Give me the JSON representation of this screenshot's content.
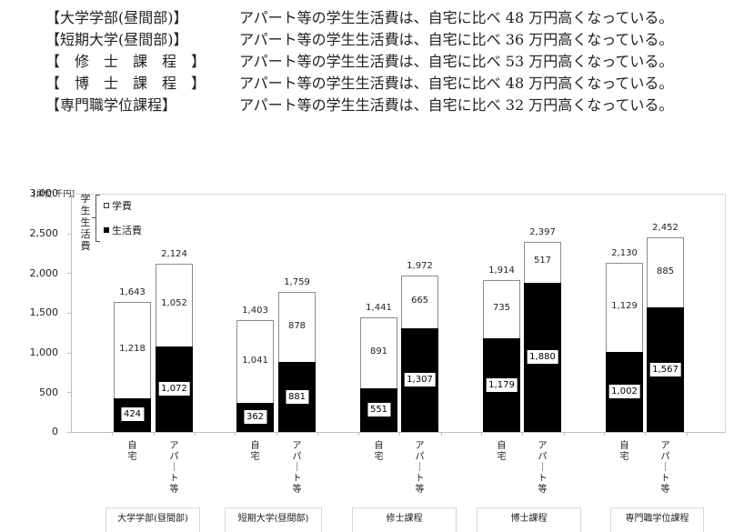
{
  "summary": [
    {
      "label": "【大学学部(昼間部)】",
      "text": "アパート等の学生生活費は、自宅に比べ 48 万円高くなっている。"
    },
    {
      "label": "【短期大学(昼間部)】",
      "text": "アパート等の学生生活費は、自宅に比べ 36 万円高くなっている。"
    },
    {
      "label": "【　修　士　課　程　】",
      "text": "アパート等の学生生活費は、自宅に比べ 53 万円高くなっている。"
    },
    {
      "label": "【　博　士　課　程　】",
      "text": "アパート等の学生生活費は、自宅に比べ 48 万円高くなっている。"
    },
    {
      "label": "【専門職学位課程】",
      "text": "アパート等の学生生活費は、自宅に比べ 32 万円高くなっている。"
    }
  ],
  "unit_label": "[単位:千円]",
  "legend": {
    "group_title": "学生生活費",
    "group_title_chars": [
      "学",
      "生",
      "生",
      "活",
      "費"
    ],
    "items": [
      {
        "label": "学費",
        "marker": "□",
        "color": "#ffffff"
      },
      {
        "label": "生活費",
        "marker": "■",
        "color": "#000000"
      }
    ]
  },
  "y_ticks": [
    "3,000",
    "2,500",
    "2,000",
    "1,500",
    "1,000",
    "500",
    "0"
  ],
  "chart_data": {
    "type": "bar",
    "stacked": true,
    "title": "",
    "unit": "千円",
    "xlabel": "",
    "ylabel": "",
    "ylim": [
      0,
      3000
    ],
    "y_ticks": [
      0,
      500,
      1000,
      1500,
      2000,
      2500,
      3000
    ],
    "grid": false,
    "legend_position": "top-left",
    "groups": [
      "大学学部(昼間部)",
      "短期大学(昼間部)",
      "修士課程",
      "博士課程",
      "専門職学位課程"
    ],
    "categories": [
      "自宅",
      "アパート等"
    ],
    "x": [
      "大学学部(昼間部)-自宅",
      "大学学部(昼間部)-アパート等",
      "短期大学(昼間部)-自宅",
      "短期大学(昼間部)-アパート等",
      "修士課程-自宅",
      "修士課程-アパート等",
      "博士課程-自宅",
      "博士課程-アパート等",
      "専門職学位課程-自宅",
      "専門職学位課程-アパート等"
    ],
    "series": [
      {
        "name": "生活費",
        "color": "#000000",
        "values": [
          424,
          1072,
          362,
          881,
          551,
          1307,
          1179,
          1880,
          1002,
          1567
        ]
      },
      {
        "name": "学費",
        "color": "#ffffff",
        "values": [
          1218,
          1052,
          1041,
          878,
          891,
          665,
          735,
          517,
          1129,
          885
        ]
      }
    ],
    "totals": [
      1643,
      2124,
      1403,
      1759,
      1441,
      1972,
      1914,
      2397,
      2130,
      2452
    ]
  },
  "bars": [
    {
      "cat": "自宅",
      "cat_chars": [
        "自",
        "宅"
      ],
      "living": 424,
      "tuition": 1218,
      "total": 1643,
      "living_label": "424",
      "tuition_label": "1,218",
      "total_label": "1,643"
    },
    {
      "cat": "アパート等",
      "cat_chars": [
        "ア",
        "パ",
        "｜",
        "ト",
        "等"
      ],
      "living": 1072,
      "tuition": 1052,
      "total": 2124,
      "living_label": "1,072",
      "tuition_label": "1,052",
      "total_label": "2,124"
    },
    {
      "cat": "自宅",
      "cat_chars": [
        "自",
        "宅"
      ],
      "living": 362,
      "tuition": 1041,
      "total": 1403,
      "living_label": "362",
      "tuition_label": "1,041",
      "total_label": "1,403"
    },
    {
      "cat": "アパート等",
      "cat_chars": [
        "ア",
        "パ",
        "｜",
        "ト",
        "等"
      ],
      "living": 881,
      "tuition": 878,
      "total": 1759,
      "living_label": "881",
      "tuition_label": "878",
      "total_label": "1,759"
    },
    {
      "cat": "自宅",
      "cat_chars": [
        "自",
        "宅"
      ],
      "living": 551,
      "tuition": 891,
      "total": 1441,
      "living_label": "551",
      "tuition_label": "891",
      "total_label": "1,441"
    },
    {
      "cat": "アパート等",
      "cat_chars": [
        "ア",
        "パ",
        "｜",
        "ト",
        "等"
      ],
      "living": 1307,
      "tuition": 665,
      "total": 1972,
      "living_label": "1,307",
      "tuition_label": "665",
      "total_label": "1,972"
    },
    {
      "cat": "自宅",
      "cat_chars": [
        "自",
        "宅"
      ],
      "living": 1179,
      "tuition": 735,
      "total": 1914,
      "living_label": "1,179",
      "tuition_label": "735",
      "total_label": "1,914"
    },
    {
      "cat": "アパート等",
      "cat_chars": [
        "ア",
        "パ",
        "｜",
        "ト",
        "等"
      ],
      "living": 1880,
      "tuition": 517,
      "total": 2397,
      "living_label": "1,880",
      "tuition_label": "517",
      "total_label": "2,397"
    },
    {
      "cat": "自宅",
      "cat_chars": [
        "自",
        "宅"
      ],
      "living": 1002,
      "tuition": 1129,
      "total": 2130,
      "living_label": "1,002",
      "tuition_label": "1,129",
      "total_label": "2,130"
    },
    {
      "cat": "アパート等",
      "cat_chars": [
        "ア",
        "パ",
        "｜",
        "ト",
        "等"
      ],
      "living": 1567,
      "tuition": 885,
      "total": 2452,
      "living_label": "1,567",
      "tuition_label": "885",
      "total_label": "2,452"
    }
  ],
  "group_labels": [
    "大学学部(昼間部)",
    "短期大学(昼間部)",
    "修士課程",
    "博士課程",
    "専門職学位課程"
  ]
}
